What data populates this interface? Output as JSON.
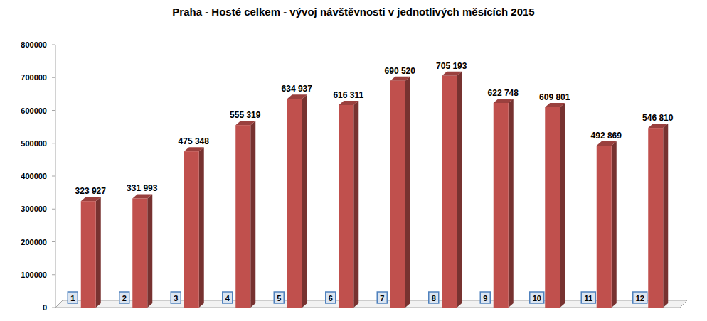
{
  "chart_data": {
    "type": "bar",
    "title": "Praha - Hosté celkem - vývoj návštěvnosti v jednotlivých měsících 2015",
    "categories": [
      "1",
      "2",
      "3",
      "4",
      "5",
      "6",
      "7",
      "8",
      "9",
      "10",
      "11",
      "12"
    ],
    "values": [
      323927,
      331993,
      475348,
      555319,
      634937,
      616311,
      690520,
      705193,
      622748,
      609801,
      492869,
      546810
    ],
    "value_labels": [
      "323 927",
      "331 993",
      "475 348",
      "555 319",
      "634 937",
      "616 311",
      "690 520",
      "705 193",
      "622 748",
      "609 801",
      "492 869",
      "546 810"
    ],
    "color": "#c0504d",
    "ylim": [
      0,
      800000
    ],
    "yticks": [
      0,
      100000,
      200000,
      300000,
      400000,
      500000,
      600000,
      700000,
      800000
    ],
    "grid": false,
    "data_labels": true
  }
}
